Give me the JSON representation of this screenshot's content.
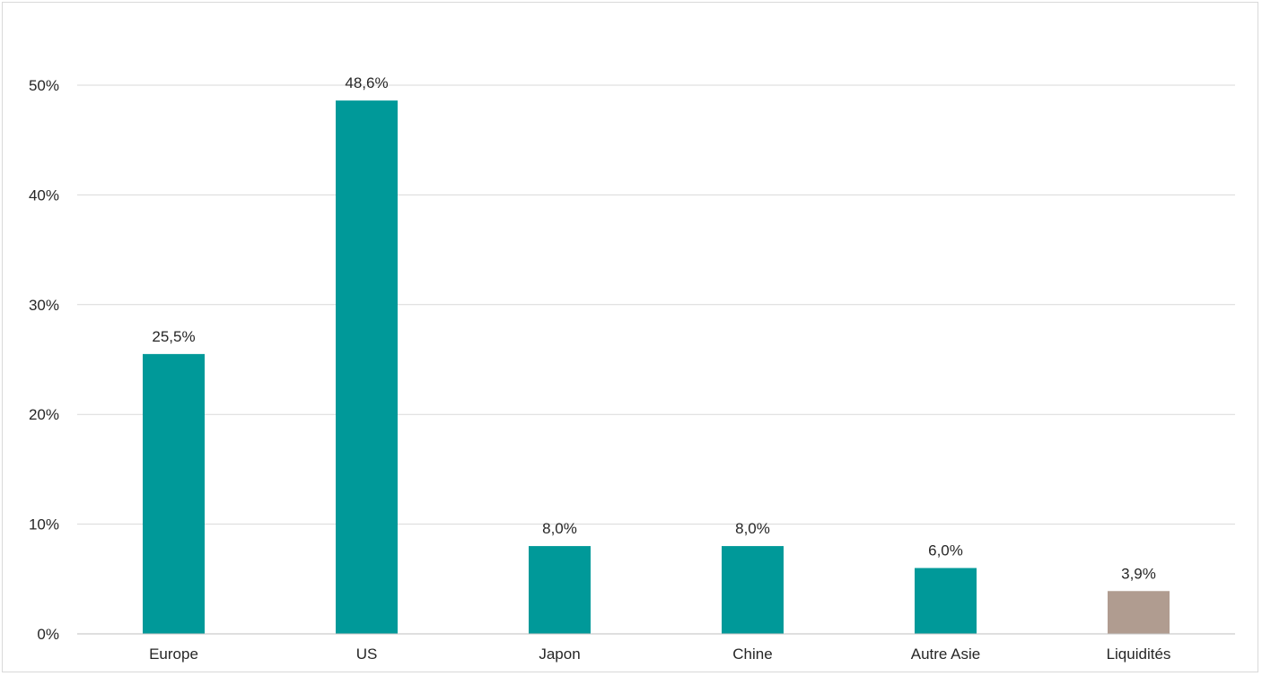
{
  "chart_data": {
    "type": "bar",
    "title": "",
    "xlabel": "",
    "ylabel": "",
    "categories": [
      "Europe",
      "US",
      "Japon",
      "Chine",
      "Autre Asie",
      "Liquidités"
    ],
    "values": [
      25.5,
      48.6,
      8.0,
      8.0,
      6.0,
      3.9
    ],
    "data_labels": [
      "25,5%",
      "48,6%",
      "8,0%",
      "8,0%",
      "6,0%",
      "3,9%"
    ],
    "bar_colors": [
      "#009999",
      "#009999",
      "#009999",
      "#009999",
      "#009999",
      "#b09c90"
    ],
    "y_ticks": [
      0,
      10,
      20,
      30,
      40,
      50
    ],
    "y_tick_labels": [
      "0%",
      "10%",
      "20%",
      "30%",
      "40%",
      "50%"
    ],
    "ylim": [
      0,
      50
    ],
    "grid": true,
    "gridline_color": "#d9d9d9",
    "axis_color": "#bfbfbf",
    "legend": "none"
  }
}
